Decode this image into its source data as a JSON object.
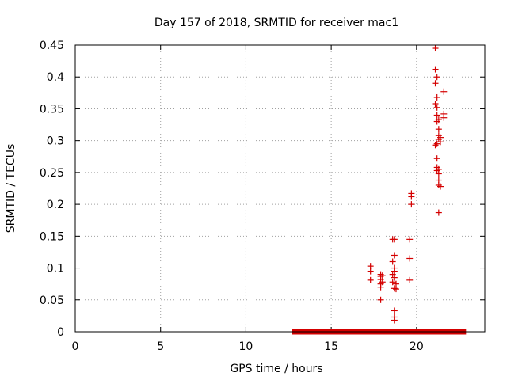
{
  "chart_data": {
    "type": "scatter",
    "title": "Day 157 of 2018, SRMTID for receiver mac1",
    "xlabel": "GPS time / hours",
    "ylabel": "SRMTID / TECUs",
    "xlim": [
      0,
      24
    ],
    "ylim": [
      0,
      0.45
    ],
    "xticks": [
      "0",
      "5",
      "10",
      "15",
      "20"
    ],
    "yticks": [
      "0",
      "0.05",
      "0.1",
      "0.15",
      "0.2",
      "0.25",
      "0.3",
      "0.35",
      "0.4",
      "0.45"
    ],
    "grid": true,
    "marker": "+",
    "color": "#d40000",
    "zero_band": {
      "x_start": 12.7,
      "x_end": 22.9,
      "y": 0
    },
    "series": [
      {
        "points": [
          [
            17.3,
            0.103
          ],
          [
            17.3,
            0.095
          ],
          [
            17.3,
            0.081
          ],
          [
            17.9,
            0.09
          ],
          [
            17.9,
            0.087
          ],
          [
            17.9,
            0.082
          ],
          [
            17.9,
            0.075
          ],
          [
            17.9,
            0.07
          ],
          [
            17.9,
            0.05
          ],
          [
            18.0,
            0.088
          ],
          [
            18.0,
            0.078
          ],
          [
            18.6,
            0.145
          ],
          [
            18.6,
            0.11
          ],
          [
            18.6,
            0.09
          ],
          [
            18.6,
            0.078
          ],
          [
            18.7,
            0.145
          ],
          [
            18.7,
            0.12
          ],
          [
            18.7,
            0.1
          ],
          [
            18.7,
            0.095
          ],
          [
            18.7,
            0.085
          ],
          [
            18.7,
            0.068
          ],
          [
            18.7,
            0.033
          ],
          [
            18.7,
            0.023
          ],
          [
            18.7,
            0.018
          ],
          [
            18.8,
            0.075
          ],
          [
            18.8,
            0.067
          ],
          [
            19.6,
            0.145
          ],
          [
            19.6,
            0.115
          ],
          [
            19.6,
            0.081
          ],
          [
            19.7,
            0.217
          ],
          [
            19.7,
            0.212
          ],
          [
            19.7,
            0.2
          ],
          [
            21.1,
            0.445
          ],
          [
            21.1,
            0.412
          ],
          [
            21.1,
            0.39
          ],
          [
            21.1,
            0.358
          ],
          [
            21.1,
            0.293
          ],
          [
            21.2,
            0.4
          ],
          [
            21.2,
            0.368
          ],
          [
            21.2,
            0.352
          ],
          [
            21.2,
            0.34
          ],
          [
            21.2,
            0.33
          ],
          [
            21.2,
            0.295
          ],
          [
            21.2,
            0.272
          ],
          [
            21.2,
            0.258
          ],
          [
            21.2,
            0.253
          ],
          [
            21.3,
            0.333
          ],
          [
            21.3,
            0.318
          ],
          [
            21.3,
            0.308
          ],
          [
            21.3,
            0.302
          ],
          [
            21.3,
            0.255
          ],
          [
            21.3,
            0.248
          ],
          [
            21.3,
            0.238
          ],
          [
            21.3,
            0.23
          ],
          [
            21.3,
            0.187
          ],
          [
            21.4,
            0.305
          ],
          [
            21.4,
            0.298
          ],
          [
            21.4,
            0.228
          ],
          [
            21.6,
            0.377
          ],
          [
            21.6,
            0.342
          ],
          [
            21.6,
            0.336
          ]
        ]
      }
    ]
  }
}
